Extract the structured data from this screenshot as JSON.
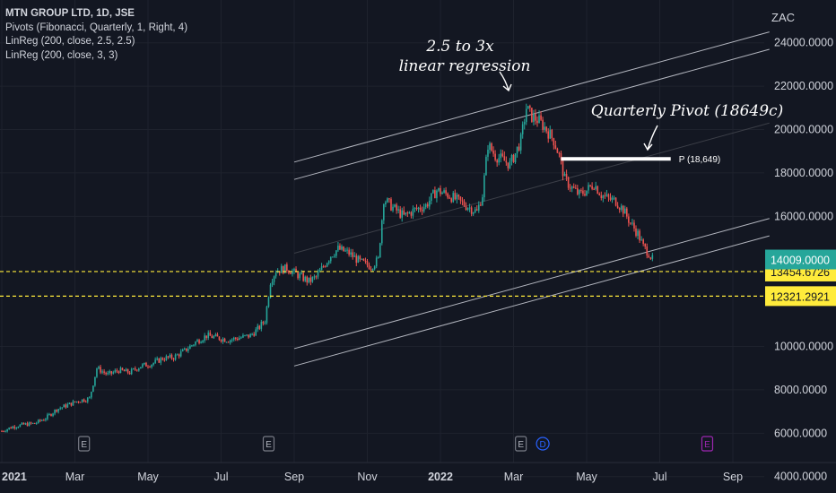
{
  "legend": {
    "title": "MTN GROUP LTD, 1D, JSE",
    "pivots": "Pivots (Fibonacci, Quarterly, 1, Right, 4)",
    "linreg1": "LinReg (200, close, 2.5, 2.5)",
    "linreg2": "LinReg (200, close, 3, 3)"
  },
  "chart_data": {
    "type": "candlestick",
    "currency": "ZAC",
    "ylim": [
      3700,
      25600
    ],
    "y_ticks": [
      {
        "value": 24000,
        "label": "24000.0000"
      },
      {
        "value": 22000,
        "label": "22000.0000"
      },
      {
        "value": 20000,
        "label": "20000.0000"
      },
      {
        "value": 18000,
        "label": "18000.0000"
      },
      {
        "value": 16000,
        "label": "16000.0000"
      },
      {
        "value": 10000,
        "label": "10000.0000"
      },
      {
        "value": 8000,
        "label": "8000.0000"
      },
      {
        "value": 6000,
        "label": "6000.0000"
      },
      {
        "value": 4000,
        "label": "4000.0000"
      }
    ],
    "x_ticks": [
      {
        "label": "2021",
        "idx": 0,
        "bold": true
      },
      {
        "label": "Mar",
        "idx": 2
      },
      {
        "label": "May",
        "idx": 4
      },
      {
        "label": "Jul",
        "idx": 6
      },
      {
        "label": "Sep",
        "idx": 8
      },
      {
        "label": "Nov",
        "idx": 10
      },
      {
        "label": "2022",
        "idx": 12,
        "bold": true
      },
      {
        "label": "Mar",
        "idx": 14
      },
      {
        "label": "May",
        "idx": 16
      },
      {
        "label": "Jul",
        "idx": 18
      },
      {
        "label": "Sep",
        "idx": 20
      }
    ],
    "price_path": [
      [
        0.0,
        6100
      ],
      [
        0.3,
        6300
      ],
      [
        0.6,
        6400
      ],
      [
        0.9,
        6450
      ],
      [
        1.2,
        6700
      ],
      [
        1.5,
        7100
      ],
      [
        1.8,
        7300
      ],
      [
        2.1,
        7500
      ],
      [
        2.4,
        7600
      ],
      [
        2.6,
        9000
      ],
      [
        2.9,
        8700
      ],
      [
        3.2,
        8900
      ],
      [
        3.5,
        8800
      ],
      [
        3.8,
        9100
      ],
      [
        4.1,
        9200
      ],
      [
        4.4,
        9450
      ],
      [
        4.7,
        9500
      ],
      [
        5.0,
        9800
      ],
      [
        5.3,
        10200
      ],
      [
        5.6,
        10500
      ],
      [
        5.9,
        10400
      ],
      [
        6.2,
        10300
      ],
      [
        6.5,
        10400
      ],
      [
        6.8,
        10500
      ],
      [
        7.0,
        10800
      ],
      [
        7.2,
        11200
      ],
      [
        7.35,
        13000
      ],
      [
        7.5,
        13500
      ],
      [
        7.8,
        13600
      ],
      [
        8.1,
        13300
      ],
      [
        8.4,
        13000
      ],
      [
        8.6,
        13200
      ],
      [
        8.8,
        13700
      ],
      [
        9.0,
        14200
      ],
      [
        9.2,
        14500
      ],
      [
        9.5,
        14300
      ],
      [
        9.8,
        13900
      ],
      [
        10.1,
        13700
      ],
      [
        10.3,
        14000
      ],
      [
        10.45,
        16800
      ],
      [
        10.7,
        16400
      ],
      [
        11.0,
        16000
      ],
      [
        11.3,
        16300
      ],
      [
        11.6,
        16500
      ],
      [
        11.9,
        17200
      ],
      [
        12.2,
        17000
      ],
      [
        12.5,
        16700
      ],
      [
        12.8,
        16400
      ],
      [
        13.0,
        16200
      ],
      [
        13.15,
        17000
      ],
      [
        13.3,
        19300
      ],
      [
        13.5,
        18800
      ],
      [
        13.7,
        18600
      ],
      [
        13.9,
        18400
      ],
      [
        14.05,
        18900
      ],
      [
        14.2,
        19500
      ],
      [
        14.35,
        21000
      ],
      [
        14.5,
        20600
      ],
      [
        14.7,
        20400
      ],
      [
        14.9,
        20000
      ],
      [
        15.1,
        19500
      ],
      [
        15.25,
        18800
      ],
      [
        15.4,
        17700
      ],
      [
        15.6,
        17300
      ],
      [
        15.8,
        17000
      ],
      [
        16.0,
        17200
      ],
      [
        16.2,
        17500
      ],
      [
        16.4,
        17000
      ],
      [
        16.6,
        16800
      ],
      [
        16.8,
        16700
      ],
      [
        17.0,
        16300
      ],
      [
        17.2,
        15700
      ],
      [
        17.4,
        15200
      ],
      [
        17.55,
        14600
      ],
      [
        17.7,
        14300
      ],
      [
        17.8,
        14009
      ]
    ],
    "last_price": {
      "value": 14009,
      "label": "14009.0000"
    },
    "horizontal_levels": [
      {
        "value": 13454.6726,
        "label": "13454.6726",
        "color": "#ffeb3b",
        "style": "dashed"
      },
      {
        "value": 12321.2921,
        "label": "12321.2921",
        "color": "#ffeb3b",
        "style": "dashed"
      }
    ],
    "pivot": {
      "value": 18649,
      "label": "P (18,649)",
      "start_idx": 15.3,
      "end_idx": 18.3
    },
    "regression_channel": {
      "start_idx": 8.0,
      "end_idx": 21.0,
      "lines": [
        {
          "start": 18500,
          "end": 24500,
          "color": "#b2b5be"
        },
        {
          "start": 17700,
          "end": 23700,
          "color": "#b2b5be"
        },
        {
          "start": 14300,
          "end": 20300,
          "color": "#3b3e47"
        },
        {
          "start": 9900,
          "end": 15900,
          "color": "#b2b5be"
        },
        {
          "start": 9100,
          "end": 15100,
          "color": "#b2b5be"
        }
      ]
    },
    "annotations": [
      {
        "text": "2.5 to 3x",
        "line": 1
      },
      {
        "text": "linear regression",
        "line": 2
      },
      {
        "text": "Quarterly Pivot (18649c)",
        "line": 1
      }
    ],
    "event_markers": [
      {
        "label": "E",
        "idx": 2.25
      },
      {
        "label": "E",
        "idx": 7.3
      },
      {
        "label": "E",
        "idx": 14.2
      },
      {
        "label": "D",
        "idx": 14.8,
        "color": "#2962ff"
      },
      {
        "label": "E",
        "idx": 19.3,
        "color": "#9c27b0"
      }
    ],
    "colors": {
      "up": "#26a69a",
      "down": "#ef5350",
      "background": "#131722",
      "grid": "#1e222d",
      "last_price_bg": "#26a69a"
    }
  }
}
